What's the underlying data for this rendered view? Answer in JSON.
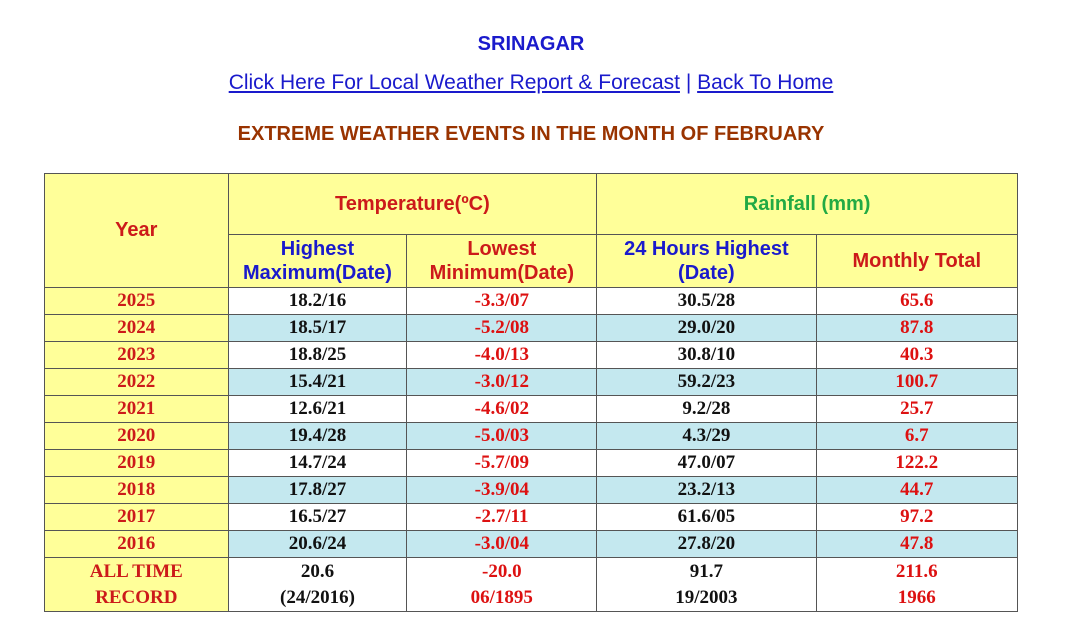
{
  "station": "SRINAGAR",
  "links": {
    "local_report": "Click Here For Local Weather Report & Forecast",
    "separator": "|",
    "back_home": "Back To Home"
  },
  "subtitle": "EXTREME WEATHER EVENTS IN THE MONTH OF FEBRUARY",
  "table": {
    "headers": {
      "year": "Year",
      "temperature": "Temperature(ºC)",
      "rainfall": "Rainfall (mm)",
      "highest_line1": "Highest",
      "highest_line2": "Maximum(Date)",
      "lowest_line1": "Lowest",
      "lowest_line2": "Minimum(Date)",
      "h24_line1": "24 Hours Highest",
      "h24_line2": "(Date)",
      "monthly_total": "Monthly Total"
    },
    "rows": [
      {
        "year": "2025",
        "max": "18.2/16",
        "min": "-3.3/07",
        "h24": "30.5/28",
        "total": "65.6"
      },
      {
        "year": "2024",
        "max": "18.5/17",
        "min": "-5.2/08",
        "h24": "29.0/20",
        "total": "87.8"
      },
      {
        "year": "2023",
        "max": "18.8/25",
        "min": "-4.0/13",
        "h24": "30.8/10",
        "total": "40.3"
      },
      {
        "year": "2022",
        "max": "15.4/21",
        "min": "-3.0/12",
        "h24": "59.2/23",
        "total": "100.7"
      },
      {
        "year": "2021",
        "max": "12.6/21",
        "min": "-4.6/02",
        "h24": "9.2/28",
        "total": "25.7"
      },
      {
        "year": "2020",
        "max": "19.4/28",
        "min": "-5.0/03",
        "h24": "4.3/29",
        "total": "6.7"
      },
      {
        "year": "2019",
        "max": "14.7/24",
        "min": "-5.7/09",
        "h24": "47.0/07",
        "total": "122.2"
      },
      {
        "year": "2018",
        "max": "17.8/27",
        "min": "-3.9/04",
        "h24": "23.2/13",
        "total": "44.7"
      },
      {
        "year": "2017",
        "max": "16.5/27",
        "min": "-2.7/11",
        "h24": "61.6/05",
        "total": "97.2"
      },
      {
        "year": "2016",
        "max": "20.6/24",
        "min": "-3.0/04",
        "h24": "27.8/20",
        "total": "47.8"
      }
    ],
    "record": {
      "label_line1": "ALL TIME",
      "label_line2": "RECORD",
      "max_value": "20.6",
      "max_date": "(24/2016)",
      "min_value": "-20.0",
      "min_date": "06/1895",
      "h24_value": "91.7",
      "h24_date": "19/2003",
      "total_value": "211.6",
      "total_year": "1966"
    }
  },
  "colors": {
    "header_yellow": "#ffff99",
    "row_blue": "#c4e8ef",
    "link_blue": "#1a1acc",
    "title_brown": "#993300",
    "value_red": "#dd1111",
    "rain_green": "#22aa44"
  }
}
